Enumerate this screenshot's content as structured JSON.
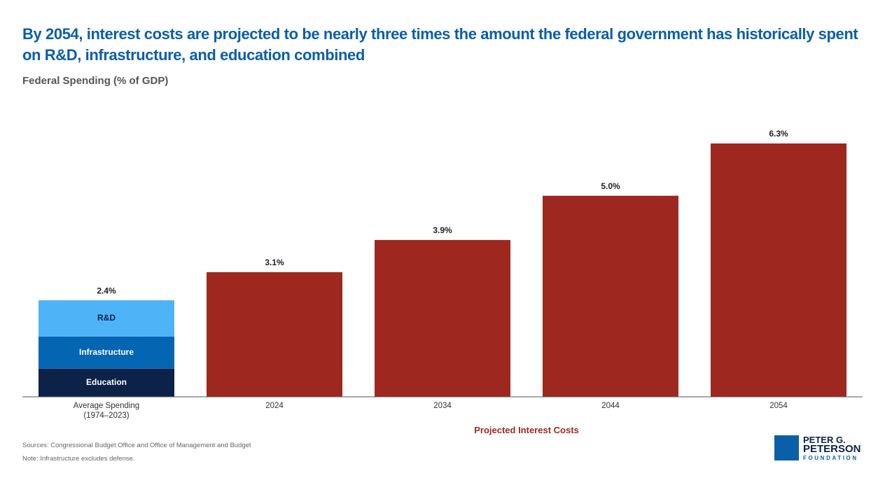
{
  "chart_data": {
    "type": "stacked_bar",
    "title": "By 2054, interest costs are projected to be nearly three times the amount the federal government has historically spent on R&D, infrastructure, and education combined",
    "subtitle": "Federal Spending (% of GDP)",
    "categories": [
      "Average Spending (1974–2023)",
      "2024",
      "2034",
      "2044",
      "2054"
    ],
    "series": [
      {
        "name": "Education",
        "color": "#0c2248",
        "values": [
          0.7,
          null,
          null,
          null,
          null
        ]
      },
      {
        "name": "Infrastructure",
        "color": "#0466b3",
        "values": [
          0.8,
          null,
          null,
          null,
          null
        ]
      },
      {
        "name": "R&D",
        "color": "#4fb3f8",
        "values": [
          0.9,
          null,
          null,
          null,
          null
        ]
      },
      {
        "name": "Projected Interest Costs",
        "color": "#9e2820",
        "values": [
          null,
          3.1,
          3.9,
          5.0,
          6.3
        ]
      }
    ],
    "totals": [
      2.4,
      3.1,
      3.9,
      5.0,
      6.3
    ],
    "total_labels": [
      "2.4%",
      "3.1%",
      "3.9%",
      "5.0%",
      "6.3%"
    ],
    "sources": "Sources: Congressional Budget Office and Office of Management and Budget",
    "note": "Note: Infrastructure excludes defense.",
    "logo": {
      "line1": "PETER G.",
      "line2": "PETERSON",
      "line3": "FOUNDATION"
    }
  }
}
